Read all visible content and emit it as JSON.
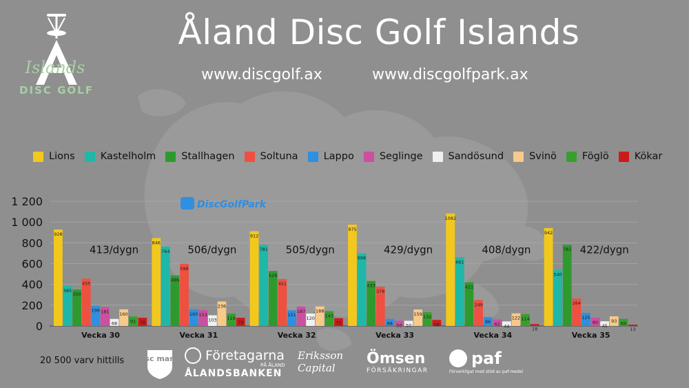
{
  "header": {
    "title": "Åland Disc Golf Islands",
    "url_left": "www.discgolf.ax",
    "url_right": "www.discgolfpark.ax"
  },
  "logo": {
    "script_text": "Islands",
    "caption": "DISC GOLF",
    "color": "#a6cfa6"
  },
  "watermark_logo": "DiscGolfPark",
  "chart_data": {
    "type": "bar",
    "categories": [
      "Vecka 30",
      "Vecka 31",
      "Vecka 32",
      "Vecka 33",
      "Vecka 34",
      "Vecka 35"
    ],
    "ylim": [
      0,
      1200
    ],
    "yticks": [
      0,
      200,
      400,
      600,
      800,
      1000,
      1200
    ],
    "ytick_labels": [
      "0",
      "200",
      "400",
      "600",
      "800",
      "1 000",
      "1 200"
    ],
    "grid": true,
    "legend_position": "top",
    "series": [
      {
        "name": "Lions",
        "color": "#f2c81c",
        "values": [
          928,
          846,
          912,
          975,
          1082,
          942
        ]
      },
      {
        "name": "Kastelholm",
        "color": "#1fb8a8",
        "values": [
          385,
          764,
          781,
          698,
          661,
          540
        ]
      },
      {
        "name": "Stallhagen",
        "color": "#2e9a2e",
        "values": [
          350,
          486,
          529,
          433,
          421,
          781
        ]
      },
      {
        "name": "Soltuna",
        "color": "#ef5040",
        "values": [
          455,
          598,
          451,
          378,
          249,
          264
        ]
      },
      {
        "name": "Lappo",
        "color": "#2f8fe0",
        "values": [
          196,
          160,
          151,
          68,
          86,
          125
        ]
      },
      {
        "name": "Seglinge",
        "color": "#cc4fa0",
        "values": [
          181,
          153,
          187,
          50,
          62,
          80
        ]
      },
      {
        "name": "Sandösund",
        "color": "#f0f0f0",
        "values": [
          68,
          103,
          120,
          50,
          44,
          45
        ]
      },
      {
        "name": "Svinö",
        "color": "#f7c98a",
        "values": [
          160,
          236,
          188,
          159,
          122,
          93
        ]
      },
      {
        "name": "Föglö",
        "color": "#36a02c",
        "values": [
          91,
          119,
          143,
          132,
          114,
          69
        ]
      },
      {
        "name": "Kökar",
        "color": "#cc1a1a",
        "values": [
          79,
          79,
          75,
          58,
          18,
          13
        ]
      }
    ],
    "annotations": [
      "413/dygn",
      "506/dygn",
      "505/dygn",
      "429/dygn",
      "408/dygn",
      "422/dygn"
    ]
  },
  "footer": {
    "total_rounds": "20 500 varv hittills"
  },
  "sponsors": {
    "discmania": "disc mania",
    "foretagarna": "Företagarna",
    "foretagarna_sub": "PÅ ÅLAND",
    "alandsbanken": "ÅLANDSBANKEN",
    "eriksson": "Eriksson Capital",
    "omsen": "Ömsen",
    "omsen_sub": "FÖRSÄKRINGAR",
    "paf": "paf",
    "paf_sub": "Förverkligat med stöd av paf-medel"
  }
}
